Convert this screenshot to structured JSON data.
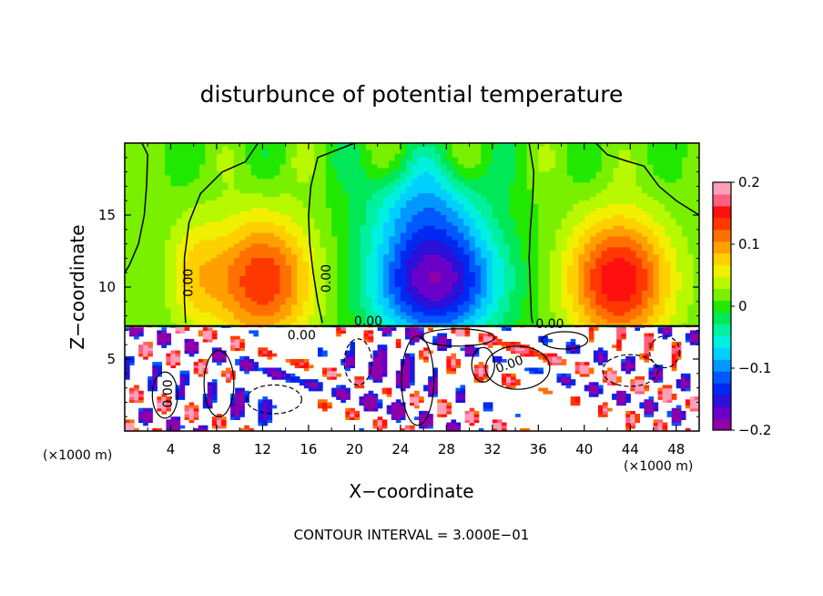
{
  "chart_data": {
    "type": "heatmap",
    "title": "disturbunce of potential temperature",
    "xlabel": "X−coordinate",
    "ylabel": "Z−coordinate",
    "x_unit_label": "(×1000 m)",
    "xlim": [
      0,
      50
    ],
    "ylim": [
      0,
      20
    ],
    "x_ticks": [
      4,
      8,
      12,
      16,
      20,
      24,
      28,
      32,
      36,
      40,
      44,
      48
    ],
    "y_ticks": [
      5,
      10,
      15
    ],
    "colorbar": {
      "range": [
        -0.2,
        0.2
      ],
      "tick_labels": [
        "0.2",
        "0.1",
        "0",
        "−0.1",
        "−0.2"
      ],
      "tick_values": [
        0.2,
        0.1,
        0,
        -0.1,
        -0.2
      ],
      "colors": [
        "#8e00a8",
        "#6a00c8",
        "#2a10d8",
        "#0028f0",
        "#0058ff",
        "#0098ff",
        "#00d0ff",
        "#00f0e0",
        "#00f0a0",
        "#00e858",
        "#20e800",
        "#78f000",
        "#b8f800",
        "#f0f000",
        "#ffd000",
        "#ffa000",
        "#ff7000",
        "#ff3800",
        "#ff1010",
        "#ff6080",
        "#ffa0b8"
      ]
    },
    "contour_labels": [
      "0.00",
      "0.00",
      "0.00",
      "0.00",
      "0.00",
      "0.00",
      "0.00"
    ],
    "contour_interval": "CONTOUR INTERVAL = 3.000E−01",
    "field_summary": {
      "upper_layer_z_range": [
        7.3,
        20
      ],
      "lower_turbulent_layer_z_range": [
        0,
        7.3
      ],
      "warm_anomaly_centers": [
        {
          "x": 12,
          "z": 10.5,
          "value": 0.13
        },
        {
          "x": 43,
          "z": 10.5,
          "value": 0.15
        }
      ],
      "cold_anomaly_center": {
        "x": 27,
        "z": 10.5,
        "value": -0.19
      }
    }
  }
}
